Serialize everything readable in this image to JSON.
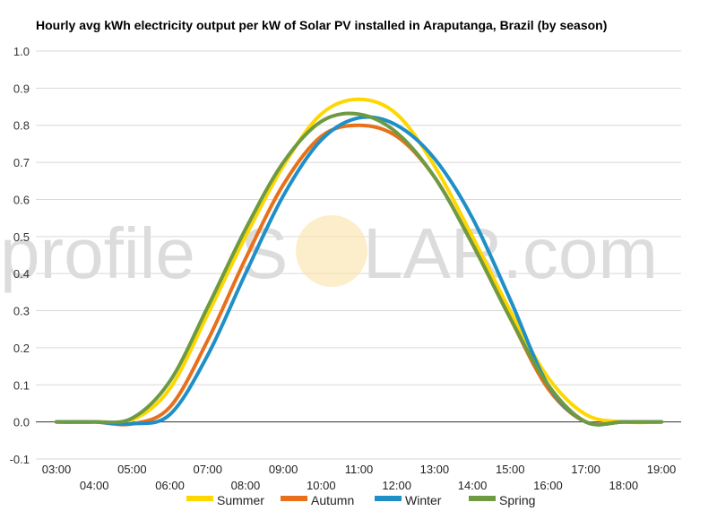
{
  "chart_data": {
    "type": "line",
    "title": "Hourly avg kWh electricity output per kW of Solar PV installed in Araputanga, Brazil (by season)",
    "xlabel": "",
    "ylabel": "",
    "x": [
      "03:00",
      "04:00",
      "05:00",
      "06:00",
      "07:00",
      "08:00",
      "09:00",
      "10:00",
      "11:00",
      "12:00",
      "13:00",
      "14:00",
      "15:00",
      "16:00",
      "17:00",
      "18:00",
      "19:00"
    ],
    "ylim": [
      -0.1,
      1.0
    ],
    "yticks": [
      "1.0",
      "0.9",
      "0.8",
      "0.7",
      "0.6",
      "0.5",
      "0.4",
      "0.3",
      "0.2",
      "0.1",
      "0.0",
      "-0.1"
    ],
    "grid": true,
    "legend": "bottom",
    "series": [
      {
        "name": "Summer",
        "color": "#FFD700",
        "values": [
          0,
          0,
          0.005,
          0.09,
          0.29,
          0.5,
          0.69,
          0.83,
          0.87,
          0.83,
          0.69,
          0.5,
          0.3,
          0.12,
          0.02,
          0,
          0
        ]
      },
      {
        "name": "Autumn",
        "color": "#E8701A",
        "values": [
          0,
          0,
          -0.005,
          0.04,
          0.22,
          0.44,
          0.64,
          0.77,
          0.8,
          0.77,
          0.66,
          0.48,
          0.28,
          0.09,
          0,
          0,
          0
        ]
      },
      {
        "name": "Winter",
        "color": "#1F8FC7",
        "values": [
          0,
          0,
          -0.005,
          0.02,
          0.18,
          0.4,
          0.61,
          0.76,
          0.82,
          0.8,
          0.71,
          0.55,
          0.33,
          0.1,
          0,
          0,
          0
        ]
      },
      {
        "name": "Spring",
        "color": "#6E9A42",
        "values": [
          0,
          0,
          0.01,
          0.11,
          0.31,
          0.52,
          0.7,
          0.81,
          0.83,
          0.78,
          0.66,
          0.48,
          0.28,
          0.1,
          0,
          0,
          0
        ]
      }
    ]
  },
  "watermark": {
    "left": "profile",
    "letter": "S",
    "right": "LAR.com",
    "sun_color": "#FBE3A8"
  }
}
